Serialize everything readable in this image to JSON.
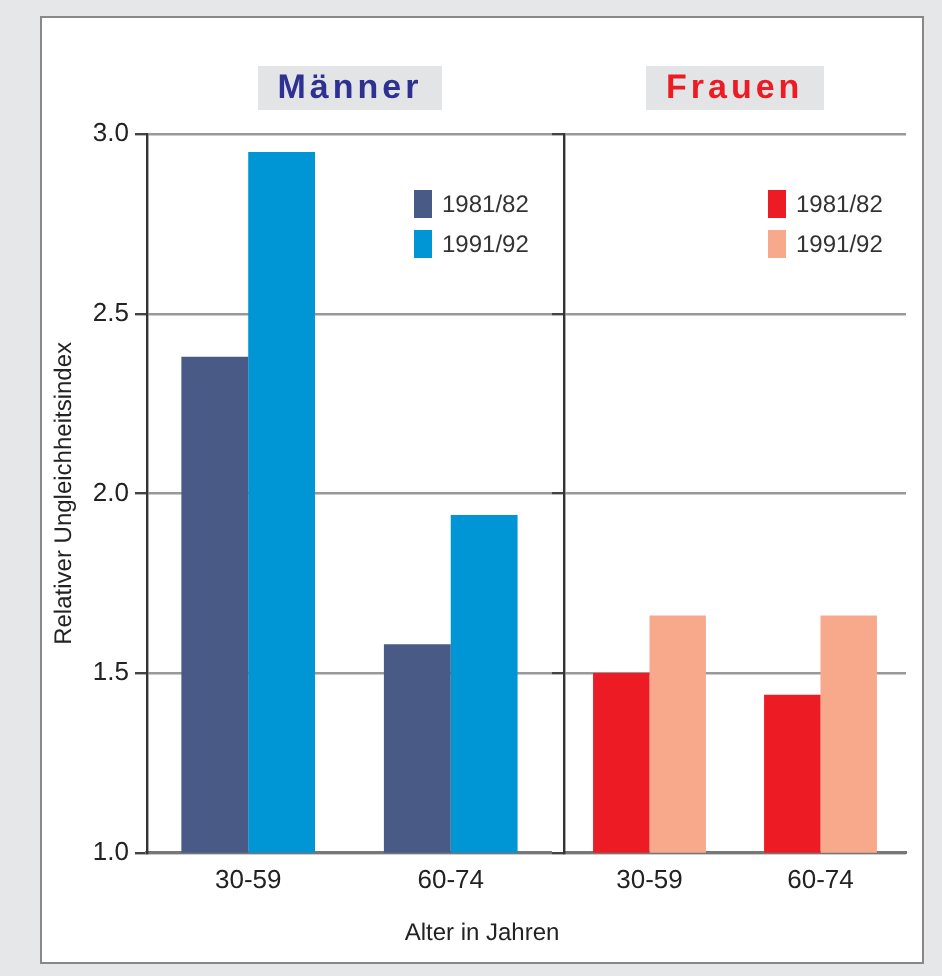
{
  "chart_data": [
    {
      "type": "bar",
      "title": "Männer",
      "ylabel": "Relativer Ungleichheitsindex",
      "xlabel": "Alter in Jahren",
      "categories": [
        "30-59",
        "60-74"
      ],
      "series": [
        {
          "name": "1981/82",
          "color": "#4a5a86",
          "values": [
            2.38,
            1.58
          ]
        },
        {
          "name": "1991/92",
          "color": "#0096d6",
          "values": [
            2.95,
            1.94
          ]
        }
      ],
      "ylim": [
        1.0,
        3.0
      ],
      "yticks": [
        {
          "value": 1.0,
          "label": "1.0"
        },
        {
          "value": 1.5,
          "label": "1.5"
        },
        {
          "value": 2.0,
          "label": "2.0"
        },
        {
          "value": 2.5,
          "label": "2.5"
        },
        {
          "value": 3.0,
          "label": "3.0"
        }
      ],
      "grid": "y",
      "legend": "top right"
    },
    {
      "type": "bar",
      "title": "Frauen",
      "categories": [
        "30-59",
        "60-74"
      ],
      "series": [
        {
          "name": "1981/82",
          "color": "#ed1c24",
          "values": [
            1.5,
            1.44
          ]
        },
        {
          "name": "1991/92",
          "color": "#f8a98c",
          "values": [
            1.66,
            1.66
          ]
        }
      ],
      "ylim": [
        1.0,
        3.0
      ],
      "yticks": [
        {
          "value": 1.0,
          "label": null
        },
        {
          "value": 1.5,
          "label": null
        },
        {
          "value": 2.0,
          "label": null
        },
        {
          "value": 2.5,
          "label": null
        },
        {
          "value": 3.0,
          "label": null
        }
      ],
      "grid": "y",
      "legend": "top right",
      "tick_labels": "x"
    }
  ]
}
